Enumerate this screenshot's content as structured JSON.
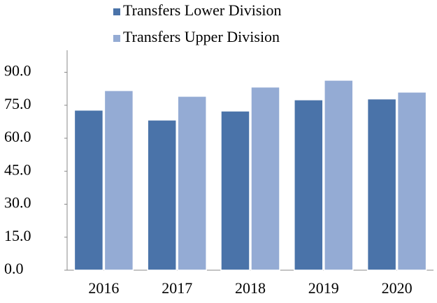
{
  "chart_data": {
    "type": "bar",
    "categories": [
      "2016",
      "2017",
      "2018",
      "2019",
      "2020"
    ],
    "series": [
      {
        "name": "Transfers Lower Division",
        "color": "#4a73a9",
        "values": [
          72.8,
          68.3,
          72.4,
          77.5,
          77.9
        ]
      },
      {
        "name": "Transfers Upper Division",
        "color": "#94abd4",
        "values": [
          81.7,
          79.1,
          83.3,
          86.4,
          81.0
        ]
      }
    ],
    "ylim": [
      0,
      100
    ],
    "yticks": [
      {
        "value": 0,
        "label": "0.0"
      },
      {
        "value": 15,
        "label": "15.0"
      },
      {
        "value": 30,
        "label": "30.0"
      },
      {
        "value": 45,
        "label": "45.0"
      },
      {
        "value": 60,
        "label": "60.0"
      },
      {
        "value": 75,
        "label": "75.0"
      },
      {
        "value": 90,
        "label": "90.0"
      }
    ],
    "grid": false,
    "legend": "top"
  }
}
